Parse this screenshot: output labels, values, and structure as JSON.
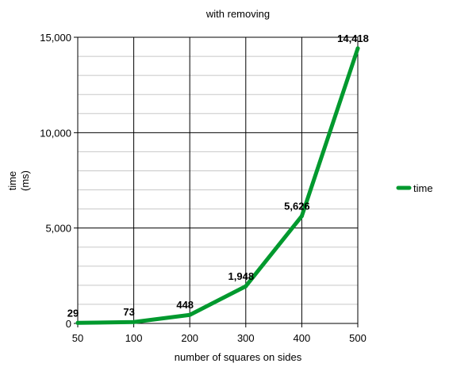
{
  "chart_data": {
    "type": "line",
    "title": "with removing",
    "xlabel": "number of squares on sides",
    "ylabel": [
      "time",
      "(ms)"
    ],
    "x": [
      50,
      100,
      200,
      300,
      400,
      500
    ],
    "x_tick_labels": [
      "50",
      "100",
      "200",
      "300",
      "400",
      "500"
    ],
    "ylim": [
      0,
      15000
    ],
    "y_ticks": [
      0,
      5000,
      10000,
      15000
    ],
    "y_tick_labels": [
      "0",
      "5,000",
      "10,000",
      "15,000"
    ],
    "y_minor_step": 1000,
    "grid": true,
    "legend_position": "right",
    "series": [
      {
        "name": "time",
        "color": "#00992e",
        "values": [
          29,
          73,
          448,
          1948,
          5626,
          14418
        ],
        "data_labels": [
          "29",
          "73",
          "448",
          "1,948",
          "5,626",
          "14,418"
        ]
      }
    ]
  }
}
